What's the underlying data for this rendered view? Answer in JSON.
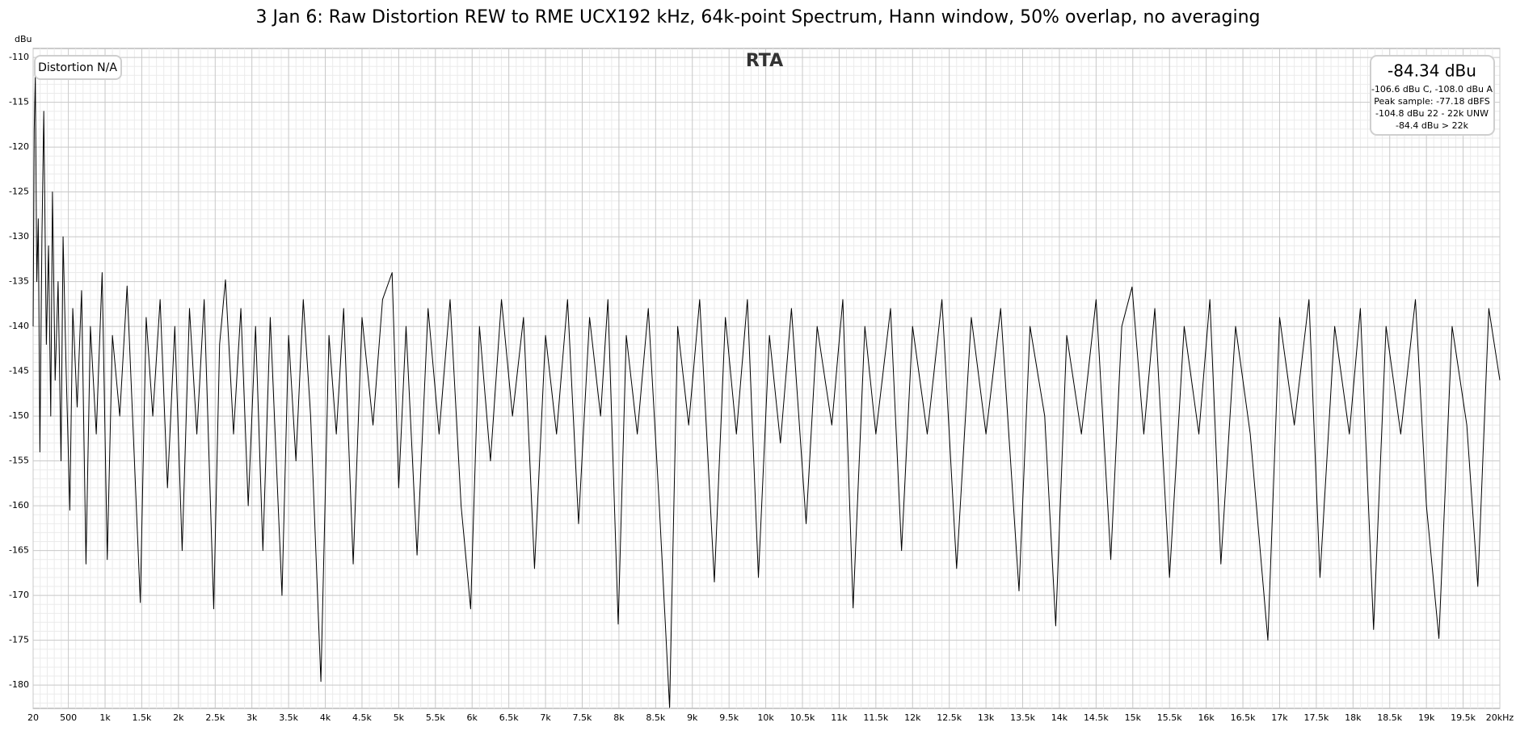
{
  "chart_data": {
    "type": "line",
    "title": "3 Jan 6: Raw Distortion REW to RME UCX192 kHz, 64k-point Spectrum, Hann window, 50% overlap, no averaging",
    "ylabel": "dBu",
    "annotations": {
      "distortion": "Distortion N/A",
      "rta": "RTA",
      "level": "-84.34 dBu",
      "details": [
        "-106.6 dBu C, -108.0 dBu A",
        "Peak sample: -77.18 dBFS",
        "-104.8 dBu 22 - 22k UNW",
        "-84.4 dBu > 22k"
      ]
    },
    "color": "#000000",
    "grid": true,
    "minor_grid": true,
    "xlim": [
      20,
      20000
    ],
    "ylim": [
      -182.6,
      -109
    ],
    "yticks": [
      -110,
      -115,
      -120,
      -125,
      -130,
      -135,
      -140,
      -145,
      -150,
      -155,
      -160,
      -165,
      -170,
      -175,
      -180
    ],
    "xticks": [
      20,
      500,
      {
        "value": 1000,
        "label": "1k"
      },
      {
        "value": 1500,
        "label": "1.5k"
      },
      {
        "value": 2000,
        "label": "2k"
      },
      {
        "value": 2500,
        "label": "2.5k"
      },
      {
        "value": 3000,
        "label": "3k"
      },
      {
        "value": 3500,
        "label": "3.5k"
      },
      {
        "value": 4000,
        "label": "4k"
      },
      {
        "value": 4500,
        "label": "4.5k"
      },
      {
        "value": 5000,
        "label": "5k"
      },
      {
        "value": 5500,
        "label": "5.5k"
      },
      {
        "value": 6000,
        "label": "6k"
      },
      {
        "value": 6500,
        "label": "6.5k"
      },
      {
        "value": 7000,
        "label": "7k"
      },
      {
        "value": 7500,
        "label": "7.5k"
      },
      {
        "value": 8000,
        "label": "8k"
      },
      {
        "value": 8500,
        "label": "8.5k"
      },
      {
        "value": 9000,
        "label": "9k"
      },
      {
        "value": 9500,
        "label": "9.5k"
      },
      {
        "value": 10000,
        "label": "10k"
      },
      {
        "value": 10500,
        "label": "10.5k"
      },
      {
        "value": 11000,
        "label": "11k"
      },
      {
        "value": 11500,
        "label": "11.5k"
      },
      {
        "value": 12000,
        "label": "12k"
      },
      {
        "value": 12500,
        "label": "12.5k"
      },
      {
        "value": 13000,
        "label": "13k"
      },
      {
        "value": 13500,
        "label": "13.5k"
      },
      {
        "value": 14000,
        "label": "14k"
      },
      {
        "value": 14500,
        "label": "14.5k"
      },
      {
        "value": 15000,
        "label": "15k"
      },
      {
        "value": 15500,
        "label": "15.5k"
      },
      {
        "value": 16000,
        "label": "16k"
      },
      {
        "value": 16500,
        "label": "16.5k"
      },
      {
        "value": 17000,
        "label": "17k"
      },
      {
        "value": 17500,
        "label": "17.5k"
      },
      {
        "value": 18000,
        "label": "18k"
      },
      {
        "value": 18500,
        "label": "18.5k"
      },
      {
        "value": 19000,
        "label": "19k"
      },
      {
        "value": 19500,
        "label": "19.5k"
      },
      {
        "value": 20000,
        "label": "20kHz"
      }
    ],
    "x": [
      20,
      35,
      50,
      70,
      90,
      112,
      140,
      165,
      200,
      230,
      260,
      283,
      320,
      360,
      400,
      428,
      470,
      520,
      560,
      620,
      680,
      740,
      800,
      880,
      960,
      1030,
      1100,
      1200,
      1300,
      1400,
      1480,
      1560,
      1650,
      1750,
      1850,
      1950,
      2050,
      2150,
      2250,
      2350,
      2480,
      2560,
      2640,
      2750,
      2850,
      2950,
      3050,
      3150,
      3250,
      3410,
      3500,
      3600,
      3700,
      3800,
      3940,
      4050,
      4150,
      4250,
      4380,
      4500,
      4650,
      4780,
      4910,
      5000,
      5100,
      5250,
      5400,
      5550,
      5700,
      5850,
      5980,
      6100,
      6250,
      6400,
      6550,
      6700,
      6850,
      7000,
      7150,
      7300,
      7450,
      7600,
      7750,
      7850,
      7990,
      8100,
      8250,
      8400,
      8550,
      8690,
      8800,
      8950,
      9100,
      9300,
      9450,
      9600,
      9750,
      9900,
      10050,
      10200,
      10350,
      10550,
      10700,
      10900,
      11050,
      11190,
      11350,
      11500,
      11700,
      11850,
      12000,
      12200,
      12400,
      12600,
      12800,
      13000,
      13200,
      13450,
      13600,
      13800,
      13950,
      14100,
      14300,
      14500,
      14700,
      14850,
      14990,
      15150,
      15300,
      15500,
      15700,
      15900,
      16050,
      16200,
      16400,
      16600,
      16840,
      17000,
      17200,
      17400,
      17550,
      17750,
      17950,
      18100,
      18280,
      18450,
      18650,
      18850,
      19000,
      19170,
      19350,
      19550,
      19700,
      19850,
      20000
    ],
    "values": [
      -140,
      -118,
      -112,
      -135,
      -128,
      -154,
      -130,
      -116,
      -142,
      -131,
      -150,
      -125,
      -146,
      -135,
      -155,
      -130,
      -145,
      -160.5,
      -138,
      -149,
      -136,
      -166.5,
      -140,
      -152,
      -134,
      -166,
      -141,
      -150,
      -135.5,
      -155,
      -170.8,
      -139,
      -150,
      -137,
      -158,
      -140,
      -165,
      -138,
      -152,
      -137,
      -171.5,
      -142,
      -134.8,
      -152,
      -138,
      -160,
      -140,
      -165,
      -139,
      -170,
      -141,
      -155,
      -137,
      -150,
      -179.6,
      -141,
      -152,
      -138,
      -166.5,
      -139,
      -151,
      -137,
      -134,
      -158,
      -140,
      -165.5,
      -138,
      -152,
      -137,
      -160,
      -171.5,
      -140,
      -155,
      -137,
      -150,
      -139,
      -167,
      -141,
      -152,
      -137,
      -162,
      -139,
      -150,
      -137,
      -173.2,
      -141,
      -152,
      -138,
      -160,
      -182.5,
      -140,
      -151,
      -137,
      -168.5,
      -139,
      -152,
      -137,
      -168,
      -141,
      -153,
      -138,
      -162,
      -140,
      -151,
      -137,
      -171.4,
      -140,
      -152,
      -138,
      -165,
      -140,
      -152,
      -137,
      -167,
      -139,
      -152,
      -138,
      -169.5,
      -140,
      -150,
      -173.4,
      -141,
      -152,
      -137,
      -166,
      -140,
      -135.6,
      -152,
      -138,
      -168,
      -140,
      -152,
      -137,
      -166.5,
      -140,
      -152,
      -175,
      -139,
      -151,
      -137,
      -168,
      -140,
      -152,
      -138,
      -173.8,
      -140,
      -152,
      -137,
      -160,
      -174.8,
      -140,
      -151,
      -169,
      -138,
      -146
    ]
  }
}
